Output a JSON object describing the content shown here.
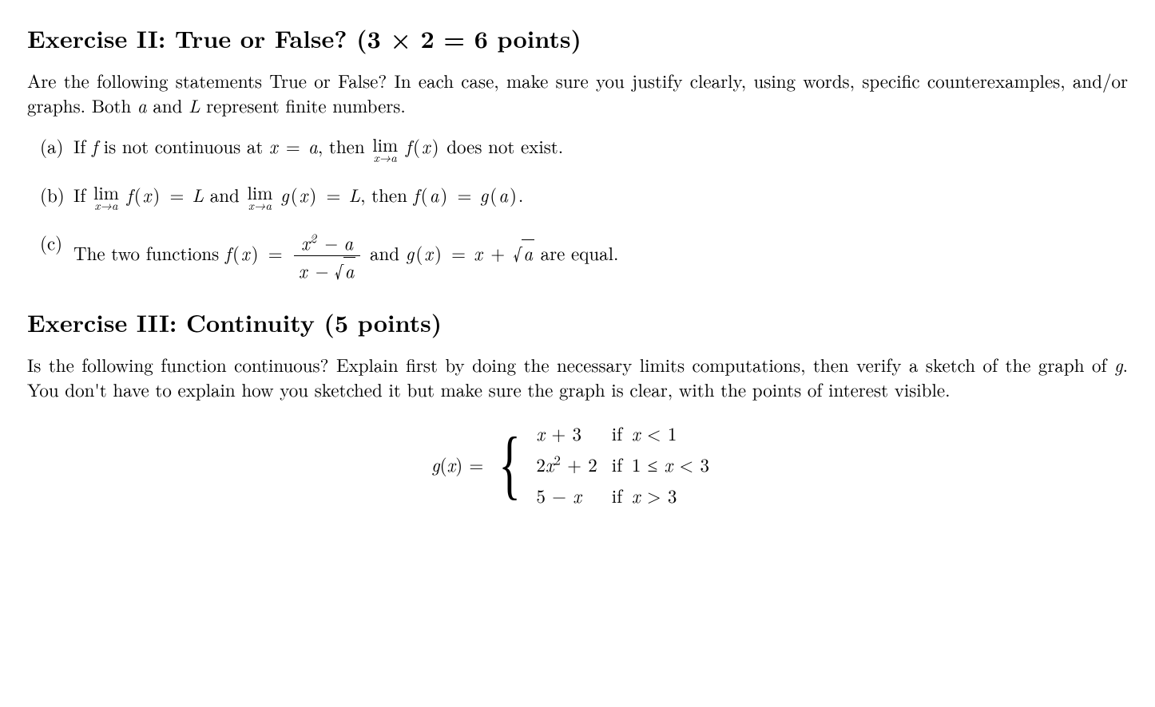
{
  "exercise2": {
    "heading": "Exercise II: True or False?  (3 × 2 = 6 points)",
    "intro_pre": "Are the following statements True or False? In each case, make sure you justify clearly, using words, specific counterexamples, and/or graphs. Both ",
    "a_var": "a",
    "intro_and": " and ",
    "L_var": "L",
    "intro_post": " represent finite numbers.",
    "items": {
      "a": {
        "label": "(a)",
        "pre": "If ",
        "f": "f",
        "mid1": " is not continuous at ",
        "eq": "x = a",
        "mid2": ", then ",
        "lim_top": "lim",
        "lim_bot": "x→a",
        "fx": "f(x)",
        "post": " does not exist."
      },
      "b": {
        "label": "(b)",
        "pre": "If ",
        "lim_top": "lim",
        "lim_bot": "x→a",
        "fx": "f(x)",
        "eqL1": " = L",
        "and": " and ",
        "gx": "g(x)",
        "eqL2": " = L",
        "then": ", then ",
        "fa": "f(a)",
        "eq": " = ",
        "ga": "g(a)",
        "dot": "."
      },
      "c": {
        "label": "(c)",
        "pre": "The two functions ",
        "fx": "f(x) = ",
        "num": "x",
        "num_sup": "2",
        "num_post": " − a",
        "den": "x − ",
        "den_sqrt": "a",
        "and": " and ",
        "gx": "g(x) = x + ",
        "gx_sqrt": "a",
        "post": " are equal."
      }
    }
  },
  "exercise3": {
    "heading": "Exercise III: Continuity (5 points)",
    "intro": "Is the following function continuous? Explain first by doing the necessary limits computations, then verify a sketch of the graph of ",
    "g_var": "g",
    "intro_post": ". You don't have to explain how you sketched it but make sure the graph is clear, with the points of interest visible.",
    "lhs": "g(x) = ",
    "pieces": [
      {
        "expr": "x + 3",
        "cond": "x < 1",
        "iff": "if "
      },
      {
        "expr": "2x",
        "sup": "2",
        "expr_post": " + 2",
        "cond": "1 ≤ x < 3",
        "iff": "if "
      },
      {
        "expr": "5 − x",
        "cond": "x > 3",
        "iff": "if "
      }
    ]
  },
  "style": {
    "text_color": "#000000",
    "background_color": "#ffffff",
    "heading_fontsize_pt": 22,
    "body_fontsize_pt": 17,
    "font_family": "Computer Modern / Times serif"
  }
}
